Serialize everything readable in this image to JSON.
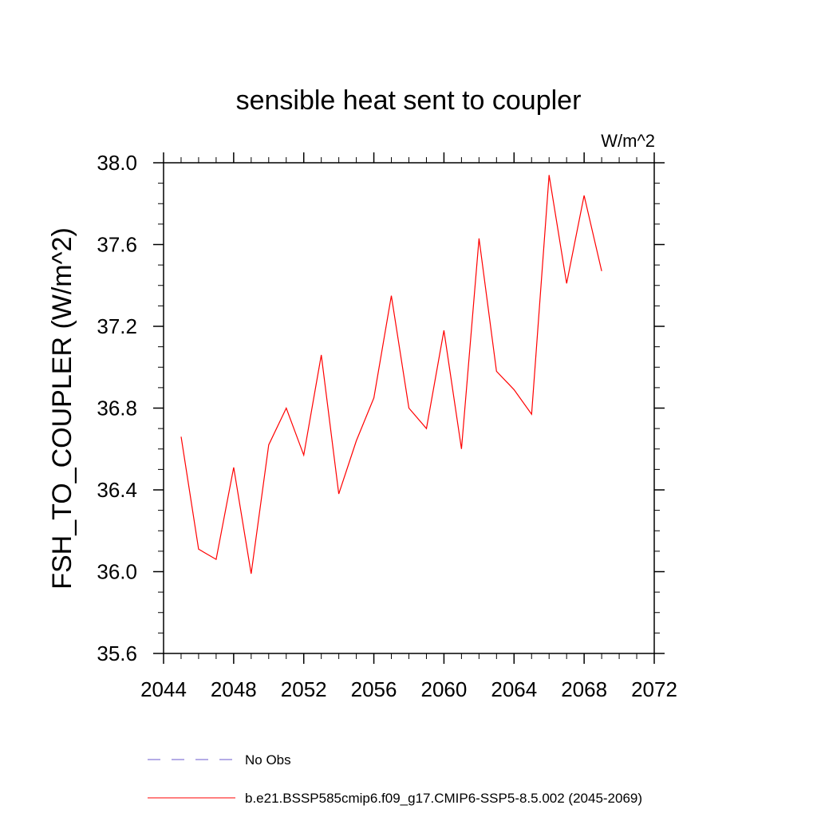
{
  "chart_data": {
    "type": "line",
    "title": "sensible heat sent to coupler",
    "units": "W/m^2",
    "xlabel": "",
    "ylabel": "FSH_TO_COUPLER  (W/m^2)",
    "xlim": [
      2044,
      2072
    ],
    "ylim": [
      35.6,
      38.0
    ],
    "x_ticks": [
      2044,
      2048,
      2052,
      2056,
      2060,
      2064,
      2068,
      2072
    ],
    "x_tick_labels": [
      "2044",
      "2048",
      "2052",
      "2056",
      "2060",
      "2064",
      "2068",
      "2072"
    ],
    "y_ticks": [
      35.6,
      36.0,
      36.4,
      36.8,
      37.2,
      37.6,
      38.0
    ],
    "y_tick_labels": [
      "35.6",
      "36.0",
      "36.4",
      "36.8",
      "37.2",
      "37.6",
      "38.0"
    ],
    "grid": false,
    "legend_position": "bottom",
    "series": [
      {
        "name": "b.e21.BSSP585cmip6.f09_g17.CMIP6-SSP5-8.5.002 (2045-2069)",
        "color": "#ff0000",
        "style": "solid",
        "x": [
          2045,
          2046,
          2047,
          2048,
          2049,
          2050,
          2051,
          2052,
          2053,
          2054,
          2055,
          2056,
          2057,
          2058,
          2059,
          2060,
          2061,
          2062,
          2063,
          2064,
          2065,
          2066,
          2067,
          2068,
          2069
        ],
        "y": [
          36.66,
          36.11,
          36.06,
          36.51,
          35.99,
          36.62,
          36.8,
          36.57,
          37.06,
          36.38,
          36.64,
          36.85,
          37.35,
          36.8,
          36.7,
          37.18,
          36.6,
          37.63,
          36.98,
          36.89,
          36.77,
          37.94,
          37.41,
          37.84,
          37.47
        ]
      }
    ],
    "legend": [
      {
        "label": "No Obs",
        "color": "#6a5acd",
        "style": "dashed"
      },
      {
        "label": "b.e21.BSSP585cmip6.f09_g17.CMIP6-SSP5-8.5.002 (2045-2069)",
        "color": "#ff0000",
        "style": "solid"
      }
    ]
  }
}
